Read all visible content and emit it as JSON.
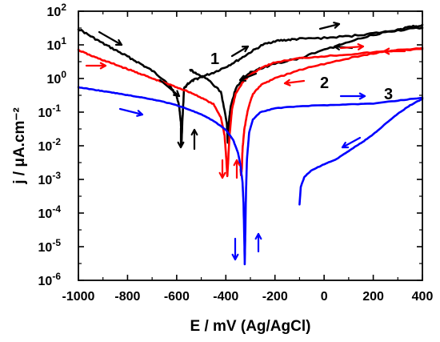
{
  "chart_data": {
    "type": "line",
    "title": "",
    "xlabel": "E / mV (Ag/AgCl)",
    "ylabel": "j / μA.cm⁻²",
    "xlim": [
      -1000,
      400
    ],
    "ylim_log10": [
      -6,
      2
    ],
    "yscale": "log",
    "grid": false,
    "x_ticks": [
      "-1000",
      "-800",
      "-600",
      "-400",
      "-200",
      "0",
      "200",
      "400"
    ],
    "x_tick_values": [
      -1000,
      -800,
      -600,
      -400,
      -200,
      0,
      200,
      400
    ],
    "y_ticks": [
      {
        "value": 2,
        "base": "10",
        "exp": "2"
      },
      {
        "value": 1,
        "base": "10",
        "exp": "1"
      },
      {
        "value": 0,
        "base": "10",
        "exp": "0"
      },
      {
        "value": -1,
        "base": "10",
        "exp": "-1"
      },
      {
        "value": -2,
        "base": "10",
        "exp": "-2"
      },
      {
        "value": -3,
        "base": "10",
        "exp": "-3"
      },
      {
        "value": -4,
        "base": "10",
        "exp": "-4"
      },
      {
        "value": -5,
        "base": "10",
        "exp": "-5"
      },
      {
        "value": -6,
        "base": "10",
        "exp": "-6"
      }
    ],
    "series": [
      {
        "name": "1",
        "color": "#000000",
        "forward": [
          [
            -1000,
            30
          ],
          [
            -950,
            18
          ],
          [
            -900,
            11
          ],
          [
            -850,
            7
          ],
          [
            -800,
            4.5
          ],
          [
            -750,
            2.8
          ],
          [
            -700,
            1.7
          ],
          [
            -650,
            0.9
          ],
          [
            -620,
            0.5
          ],
          [
            -600,
            0.3
          ],
          [
            -590,
            0.15
          ],
          [
            -583,
            0.05
          ],
          [
            -580,
            0.012
          ],
          [
            -577,
            0.05
          ],
          [
            -570,
            0.5
          ],
          [
            -555,
            0.7
          ],
          [
            -530,
            0.9
          ],
          [
            -500,
            1.1
          ],
          [
            -450,
            1.5
          ],
          [
            -400,
            2.2
          ],
          [
            -350,
            3.5
          ],
          [
            -300,
            6
          ],
          [
            -250,
            10
          ],
          [
            -200,
            13
          ],
          [
            -150,
            14
          ],
          [
            -100,
            15
          ],
          [
            0,
            16
          ],
          [
            100,
            18
          ],
          [
            200,
            22
          ],
          [
            300,
            27
          ],
          [
            400,
            32
          ]
        ],
        "reverse": [
          [
            400,
            38
          ],
          [
            350,
            34
          ],
          [
            300,
            28
          ],
          [
            200,
            20
          ],
          [
            100,
            12
          ],
          [
            0,
            7
          ],
          [
            -100,
            4
          ],
          [
            -200,
            2.8
          ],
          [
            -250,
            2.1
          ],
          [
            -300,
            1.5
          ],
          [
            -330,
            1.0
          ],
          [
            -360,
            0.5
          ],
          [
            -380,
            0.15
          ],
          [
            -388,
            0.05
          ],
          [
            -392,
            0.012
          ],
          [
            -396,
            0.05
          ],
          [
            -420,
            0.4
          ],
          [
            -470,
            0.9
          ],
          [
            -520,
            1.4
          ],
          [
            -545,
            1.8
          ]
        ]
      },
      {
        "name": "2",
        "color": "#ff0000",
        "forward": [
          [
            -1000,
            7
          ],
          [
            -950,
            4.8
          ],
          [
            -900,
            3.5
          ],
          [
            -850,
            2.6
          ],
          [
            -800,
            1.9
          ],
          [
            -750,
            1.4
          ],
          [
            -700,
            1.0
          ],
          [
            -650,
            0.75
          ],
          [
            -600,
            0.55
          ],
          [
            -550,
            0.4
          ],
          [
            -500,
            0.27
          ],
          [
            -450,
            0.17
          ],
          [
            -420,
            0.07
          ],
          [
            -405,
            0.02
          ],
          [
            -398,
            0.004
          ],
          [
            -394,
            0.0012
          ],
          [
            -390,
            0.004
          ],
          [
            -385,
            0.02
          ],
          [
            -375,
            0.12
          ],
          [
            -360,
            0.35
          ],
          [
            -330,
            0.8
          ],
          [
            -300,
            1.3
          ],
          [
            -250,
            2.2
          ],
          [
            -200,
            3.0
          ],
          [
            -100,
            4.0
          ],
          [
            0,
            4.6
          ],
          [
            100,
            5.2
          ],
          [
            200,
            6
          ],
          [
            300,
            6.8
          ],
          [
            400,
            7.5
          ]
        ],
        "reverse": [
          [
            400,
            8
          ],
          [
            300,
            7
          ],
          [
            200,
            5.6
          ],
          [
            100,
            4
          ],
          [
            0,
            2.7
          ],
          [
            -100,
            1.8
          ],
          [
            -200,
            1.0
          ],
          [
            -250,
            0.7
          ],
          [
            -290,
            0.35
          ],
          [
            -310,
            0.12
          ],
          [
            -325,
            0.03
          ],
          [
            -332,
            0.008
          ],
          [
            -335,
            0.002
          ],
          [
            -338,
            0.0013
          ],
          [
            -340,
            0.002
          ]
        ]
      },
      {
        "name": "3",
        "color": "#0000ff",
        "forward": [
          [
            -1000,
            0.55
          ],
          [
            -950,
            0.48
          ],
          [
            -900,
            0.42
          ],
          [
            -850,
            0.37
          ],
          [
            -800,
            0.32
          ],
          [
            -750,
            0.28
          ],
          [
            -700,
            0.24
          ],
          [
            -650,
            0.2
          ],
          [
            -600,
            0.16
          ],
          [
            -550,
            0.12
          ],
          [
            -500,
            0.085
          ],
          [
            -450,
            0.055
          ],
          [
            -400,
            0.03
          ],
          [
            -370,
            0.015
          ],
          [
            -350,
            0.006
          ],
          [
            -340,
            0.0025
          ],
          [
            -332,
            0.0008
          ],
          [
            -328,
            0.0002
          ],
          [
            -325,
            2e-05
          ],
          [
            -323,
            3e-06
          ],
          [
            -321,
            2e-05
          ],
          [
            -318,
            0.0004
          ],
          [
            -314,
            0.004
          ],
          [
            -305,
            0.025
          ],
          [
            -290,
            0.06
          ],
          [
            -260,
            0.1
          ],
          [
            -200,
            0.13
          ],
          [
            -100,
            0.15
          ],
          [
            0,
            0.16
          ],
          [
            100,
            0.17
          ],
          [
            200,
            0.18
          ],
          [
            300,
            0.22
          ],
          [
            400,
            0.27
          ]
        ],
        "reverse": [
          [
            400,
            0.25
          ],
          [
            350,
            0.16
          ],
          [
            300,
            0.09
          ],
          [
            250,
            0.045
          ],
          [
            200,
            0.022
          ],
          [
            150,
            0.012
          ],
          [
            100,
            0.007
          ],
          [
            50,
            0.004
          ],
          [
            0,
            0.0028
          ],
          [
            -50,
            0.0019
          ],
          [
            -80,
            0.0012
          ],
          [
            -95,
            0.0006
          ],
          [
            -100,
            0.00018
          ]
        ]
      }
    ],
    "annotations": [
      {
        "text": "1",
        "color": "#000000"
      },
      {
        "text": "2",
        "color": "#ff0000"
      },
      {
        "text": "3",
        "color": "#0000ff"
      }
    ]
  }
}
